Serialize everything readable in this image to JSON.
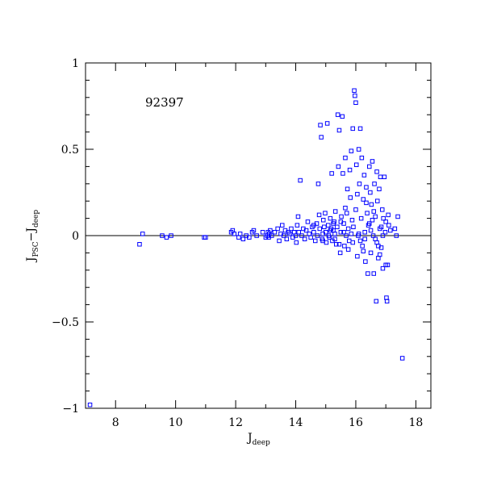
{
  "chart_data": {
    "type": "scatter",
    "title": "",
    "annotation": "92397",
    "xlabel": {
      "main": "J",
      "sub": "deep"
    },
    "ylabel": {
      "a": "J",
      "a_sub": "PSC",
      "dash": "−",
      "b": "J",
      "b_sub": "deep"
    },
    "xlim": [
      7.0,
      18.5
    ],
    "ylim": [
      -1.0,
      1.0
    ],
    "xticks": [
      8,
      10,
      12,
      14,
      16,
      18
    ],
    "xtick_labels": [
      "8",
      "10",
      "12",
      "14",
      "16",
      "18"
    ],
    "yticks": [
      -1,
      -0.5,
      0,
      0.5,
      1
    ],
    "ytick_labels": [
      "−1",
      "−0.5",
      "0",
      "0.5",
      "1"
    ],
    "reference_line_y": 0,
    "marker_color": "#0000ff",
    "grid": false,
    "points": [
      [
        7.15,
        -0.98
      ],
      [
        8.8,
        -0.05
      ],
      [
        8.9,
        0.01
      ],
      [
        9.55,
        0.0
      ],
      [
        9.7,
        -0.01
      ],
      [
        9.85,
        0.0
      ],
      [
        10.95,
        -0.01
      ],
      [
        11.0,
        -0.01
      ],
      [
        11.85,
        0.02
      ],
      [
        11.9,
        0.03
      ],
      [
        11.95,
        0.01
      ],
      [
        12.1,
        -0.01
      ],
      [
        12.15,
        0.01
      ],
      [
        12.25,
        -0.02
      ],
      [
        12.35,
        0.0
      ],
      [
        12.45,
        -0.01
      ],
      [
        12.55,
        0.02
      ],
      [
        12.6,
        0.03
      ],
      [
        12.7,
        0.0
      ],
      [
        12.9,
        0.02
      ],
      [
        13.0,
        -0.01
      ],
      [
        13.05,
        0.0
      ],
      [
        13.08,
        0.02
      ],
      [
        13.1,
        -0.01
      ],
      [
        13.12,
        0.01
      ],
      [
        13.15,
        0.03
      ],
      [
        13.2,
        0.0
      ],
      [
        13.3,
        0.02
      ],
      [
        13.4,
        0.04
      ],
      [
        13.45,
        -0.03
      ],
      [
        13.5,
        0.01
      ],
      [
        13.55,
        0.06
      ],
      [
        13.6,
        0.0
      ],
      [
        13.65,
        0.03
      ],
      [
        13.7,
        -0.02
      ],
      [
        13.75,
        0.02
      ],
      [
        13.8,
        0.01
      ],
      [
        13.85,
        0.04
      ],
      [
        13.9,
        -0.01
      ],
      [
        13.95,
        0.02
      ],
      [
        14.0,
        0.0
      ],
      [
        14.02,
        -0.04
      ],
      [
        14.05,
        0.06
      ],
      [
        14.08,
        0.11
      ],
      [
        14.1,
        0.02
      ],
      [
        14.15,
        0.32
      ],
      [
        14.2,
        0.0
      ],
      [
        14.25,
        0.04
      ],
      [
        14.3,
        -0.02
      ],
      [
        14.35,
        0.03
      ],
      [
        14.4,
        0.08
      ],
      [
        14.45,
        0.01
      ],
      [
        14.5,
        -0.01
      ],
      [
        14.55,
        0.05
      ],
      [
        14.6,
        0.02
      ],
      [
        14.65,
        -0.03
      ],
      [
        14.7,
        0.07
      ],
      [
        14.72,
        0.0
      ],
      [
        14.75,
        0.3
      ],
      [
        14.78,
        0.12
      ],
      [
        14.8,
        0.04
      ],
      [
        14.82,
        0.64
      ],
      [
        14.85,
        0.57
      ],
      [
        14.88,
        -0.02
      ],
      [
        14.9,
        0.01
      ],
      [
        14.92,
        0.09
      ],
      [
        14.95,
        0.05
      ],
      [
        14.98,
        0.13
      ],
      [
        15.0,
        0.02
      ],
      [
        15.02,
        -0.04
      ],
      [
        15.05,
        0.65
      ],
      [
        15.08,
        0.06
      ],
      [
        15.1,
        0.0
      ],
      [
        15.12,
        -0.01
      ],
      [
        15.15,
        0.1
      ],
      [
        15.18,
        0.04
      ],
      [
        15.2,
        0.36
      ],
      [
        15.22,
        -0.03
      ],
      [
        15.25,
        0.03
      ],
      [
        15.28,
        0.08
      ],
      [
        15.3,
        0.01
      ],
      [
        15.32,
        0.14
      ],
      [
        15.35,
        -0.05
      ],
      [
        15.38,
        0.05
      ],
      [
        15.4,
        0.7
      ],
      [
        15.42,
        0.4
      ],
      [
        15.45,
        0.61
      ],
      [
        15.48,
        -0.1
      ],
      [
        15.5,
        0.02
      ],
      [
        15.52,
        0.11
      ],
      [
        15.55,
        0.69
      ],
      [
        15.57,
        0.36
      ],
      [
        15.6,
        0.07
      ],
      [
        15.62,
        -0.06
      ],
      [
        15.65,
        0.45
      ],
      [
        15.68,
        0.0
      ],
      [
        15.7,
        0.13
      ],
      [
        15.72,
        0.27
      ],
      [
        15.75,
        0.04
      ],
      [
        15.78,
        -0.03
      ],
      [
        15.8,
        0.38
      ],
      [
        15.82,
        0.22
      ],
      [
        15.85,
        0.49
      ],
      [
        15.88,
        0.09
      ],
      [
        15.9,
        0.62
      ],
      [
        15.92,
        0.05
      ],
      [
        15.95,
        0.84
      ],
      [
        15.97,
        0.81
      ],
      [
        16.0,
        0.77
      ],
      [
        16.02,
        0.41
      ],
      [
        16.05,
        -0.12
      ],
      [
        16.08,
        0.0
      ],
      [
        16.1,
        0.5
      ],
      [
        16.12,
        0.3
      ],
      [
        16.15,
        0.62
      ],
      [
        16.18,
        0.1
      ],
      [
        16.2,
        0.45
      ],
      [
        16.22,
        -0.06
      ],
      [
        16.25,
        0.21
      ],
      [
        16.28,
        0.35
      ],
      [
        16.3,
        0.02
      ],
      [
        16.32,
        -0.15
      ],
      [
        16.35,
        0.28
      ],
      [
        16.38,
        0.13
      ],
      [
        16.4,
        -0.22
      ],
      [
        16.42,
        0.06
      ],
      [
        16.45,
        0.4
      ],
      [
        16.48,
        0.25
      ],
      [
        16.5,
        -0.1
      ],
      [
        16.52,
        0.18
      ],
      [
        16.55,
        0.43
      ],
      [
        16.58,
        0.0
      ],
      [
        16.6,
        -0.22
      ],
      [
        16.62,
        0.3
      ],
      [
        16.65,
        0.11
      ],
      [
        16.68,
        -0.38
      ],
      [
        16.7,
        0.37
      ],
      [
        16.72,
        0.2
      ],
      [
        16.75,
        -0.13
      ],
      [
        16.78,
        0.27
      ],
      [
        16.8,
        0.04
      ],
      [
        16.82,
        0.34
      ],
      [
        16.85,
        -0.07
      ],
      [
        16.88,
        0.15
      ],
      [
        16.9,
        -0.19
      ],
      [
        16.92,
        0.1
      ],
      [
        16.95,
        0.34
      ],
      [
        16.98,
        0.02
      ],
      [
        17.0,
        -0.17
      ],
      [
        17.02,
        -0.36
      ],
      [
        17.04,
        -0.38
      ],
      [
        17.06,
        -0.17
      ],
      [
        17.08,
        0.12
      ],
      [
        17.1,
        0.06
      ],
      [
        17.15,
        0.03
      ],
      [
        17.3,
        0.04
      ],
      [
        17.35,
        0.0
      ],
      [
        17.4,
        0.11
      ],
      [
        17.55,
        -0.71
      ],
      [
        15.3,
        -0.02
      ],
      [
        15.6,
        0.02
      ],
      [
        15.9,
        -0.04
      ],
      [
        16.1,
        0.01
      ],
      [
        16.3,
        -0.02
      ],
      [
        16.5,
        0.03
      ],
      [
        16.7,
        -0.04
      ],
      [
        16.9,
        0.0
      ],
      [
        15.5,
        0.08
      ],
      [
        15.75,
        -0.08
      ],
      [
        16.0,
        0.15
      ],
      [
        16.25,
        -0.09
      ],
      [
        16.45,
        0.07
      ],
      [
        16.65,
        -0.02
      ],
      [
        16.85,
        0.05
      ],
      [
        15.15,
        0.03
      ],
      [
        15.45,
        -0.05
      ],
      [
        15.85,
        0.01
      ],
      [
        16.15,
        -0.03
      ],
      [
        16.55,
        0.09
      ],
      [
        16.75,
        -0.06
      ],
      [
        14.6,
        0.06
      ],
      [
        14.9,
        -0.03
      ],
      [
        15.25,
        0.07
      ],
      [
        15.65,
        0.16
      ],
      [
        16.05,
        0.24
      ],
      [
        16.35,
        0.19
      ],
      [
        16.6,
        0.14
      ],
      [
        16.8,
        -0.11
      ],
      [
        17.0,
        0.08
      ]
    ]
  }
}
